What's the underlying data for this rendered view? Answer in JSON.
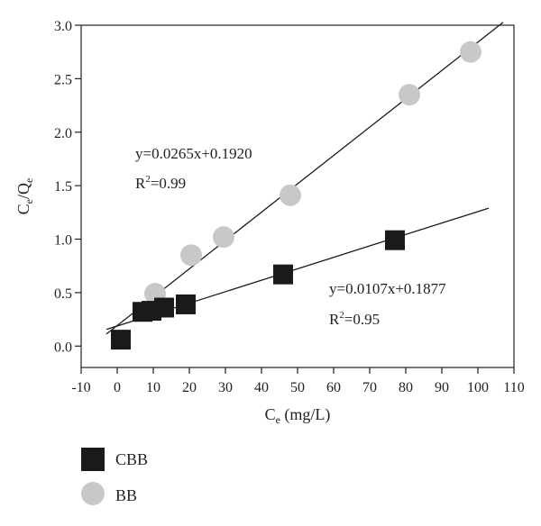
{
  "chart_data": {
    "type": "scatter",
    "xlabel": {
      "main": "C",
      "sub": "e",
      "rest": " (mg/L)"
    },
    "ylabel": {
      "a": "C",
      "a_sub": "e",
      "slash": "/Q",
      "b_sub": "e"
    },
    "xlim": [
      -10,
      110
    ],
    "ylim": [
      -0.2,
      3.0
    ],
    "xticks": [
      -10,
      0,
      10,
      20,
      30,
      40,
      50,
      60,
      70,
      80,
      90,
      100,
      110
    ],
    "yticks": [
      0.0,
      0.5,
      1.0,
      1.5,
      2.0,
      2.5,
      3.0
    ],
    "ytick_labels": [
      "0.0",
      "0.5",
      "1.0",
      "1.5",
      "2.0",
      "2.5",
      "3.0"
    ],
    "series": [
      {
        "name": "BB",
        "marker": "circle",
        "color": "#c8c8c8",
        "x": [
          10.5,
          20.5,
          29.5,
          48,
          81,
          98
        ],
        "y": [
          0.49,
          0.85,
          1.02,
          1.41,
          2.35,
          2.75
        ],
        "fit": {
          "slope": 0.0265,
          "intercept": 0.192,
          "x_range": [
            -3,
            107
          ]
        },
        "equation": "y=0.0265x+0.1920",
        "r2_prefix": "R",
        "r2_sup": "2",
        "r2_value": "=0.99"
      },
      {
        "name": "CBB",
        "marker": "square",
        "color": "#1a1a1a",
        "x": [
          1,
          7,
          9.5,
          13,
          19,
          46,
          77
        ],
        "y": [
          0.06,
          0.32,
          0.33,
          0.36,
          0.39,
          0.67,
          0.99
        ],
        "fit": {
          "slope": 0.0107,
          "intercept": 0.1877,
          "x_range": [
            -3,
            103
          ]
        },
        "equation": "y=0.0107x+0.1877",
        "r2_prefix": "R",
        "r2_sup": "2",
        "r2_value": "=0.95"
      }
    ],
    "legend": {
      "placement": "bottom-left",
      "entries": [
        "CBB",
        "BB"
      ]
    }
  }
}
